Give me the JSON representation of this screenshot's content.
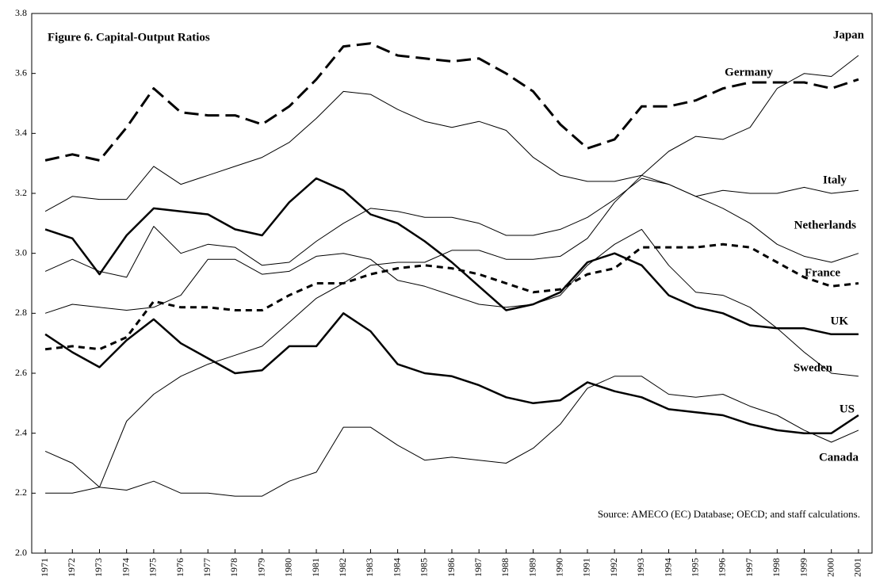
{
  "chart_data": {
    "type": "line",
    "title": "Figure 6.  Capital-Output Ratios",
    "source": "Source: AMECO (EC) Database; OECD; and staff calculations.",
    "categories": [
      "1971",
      "1972",
      "1973",
      "1974",
      "1975",
      "1976",
      "1977",
      "1978",
      "1979",
      "1980",
      "1981",
      "1982",
      "1983",
      "1984",
      "1985",
      "1986",
      "1987",
      "1988",
      "1989",
      "1990",
      "1991",
      "1992",
      "1993",
      "1994",
      "1995",
      "1996",
      "1997",
      "1998",
      "1999",
      "2000",
      "2001"
    ],
    "ylim": [
      2.0,
      3.8
    ],
    "yticks": [
      {
        "value": 2.0,
        "label": "2.0"
      },
      2.2,
      2.4,
      2.6,
      2.8,
      {
        "value": 3.0,
        "label": "3.0"
      },
      3.2,
      3.4,
      3.6,
      3.8
    ],
    "series": [
      {
        "name": "Japan",
        "color": "#000000",
        "style": "solid",
        "width": 1,
        "values": [
          2.34,
          2.3,
          2.22,
          2.44,
          2.53,
          2.59,
          2.63,
          2.66,
          2.69,
          2.77,
          2.85,
          2.9,
          2.96,
          2.97,
          2.97,
          3.01,
          3.01,
          2.98,
          2.98,
          2.99,
          3.05,
          3.17,
          3.26,
          3.34,
          3.39,
          3.38,
          3.42,
          3.55,
          3.6,
          3.59,
          3.66
        ]
      },
      {
        "name": "Germany",
        "color": "#000000",
        "style": "dashed",
        "width": 3,
        "values": [
          3.31,
          3.33,
          3.31,
          3.42,
          3.55,
          3.47,
          3.46,
          3.46,
          3.43,
          3.49,
          3.58,
          3.69,
          3.7,
          3.66,
          3.65,
          3.64,
          3.65,
          3.6,
          3.54,
          3.43,
          3.35,
          3.38,
          3.49,
          3.49,
          3.51,
          3.55,
          3.57,
          3.57,
          3.57,
          3.55,
          3.58
        ]
      },
      {
        "name": "Italy",
        "color": "#000000",
        "style": "solid",
        "width": 1,
        "values": [
          3.14,
          3.19,
          3.18,
          3.18,
          3.29,
          3.23,
          3.26,
          3.29,
          3.32,
          3.37,
          3.45,
          3.54,
          3.53,
          3.48,
          3.44,
          3.42,
          3.44,
          3.41,
          3.32,
          3.26,
          3.24,
          3.24,
          3.26,
          3.23,
          3.19,
          3.21,
          3.2,
          3.2,
          3.22,
          3.2,
          3.21
        ]
      },
      {
        "name": "Netherlands",
        "color": "#000000",
        "style": "solid",
        "width": 1,
        "values": [
          2.94,
          2.98,
          2.94,
          2.92,
          3.09,
          3.0,
          3.03,
          3.02,
          2.96,
          2.97,
          3.04,
          3.1,
          3.15,
          3.14,
          3.12,
          3.12,
          3.1,
          3.06,
          3.06,
          3.08,
          3.12,
          3.18,
          3.25,
          3.23,
          3.19,
          3.15,
          3.1,
          3.03,
          2.99,
          2.97,
          3.0
        ]
      },
      {
        "name": "France",
        "color": "#000000",
        "style": "dotted",
        "width": 3,
        "values": [
          2.68,
          2.69,
          2.68,
          2.72,
          2.84,
          2.82,
          2.82,
          2.81,
          2.81,
          2.86,
          2.9,
          2.9,
          2.93,
          2.95,
          2.96,
          2.95,
          2.93,
          2.9,
          2.87,
          2.88,
          2.93,
          2.95,
          3.02,
          3.02,
          3.02,
          3.03,
          3.02,
          2.97,
          2.92,
          2.89,
          2.9
        ]
      },
      {
        "name": "UK",
        "color": "#000000",
        "style": "solid",
        "width": 2.5,
        "values": [
          3.08,
          3.05,
          2.93,
          3.06,
          3.15,
          3.14,
          3.13,
          3.08,
          3.06,
          3.17,
          3.25,
          3.21,
          3.13,
          3.1,
          3.04,
          2.97,
          2.89,
          2.81,
          2.83,
          2.87,
          2.97,
          3.0,
          2.96,
          2.86,
          2.82,
          2.8,
          2.76,
          2.75,
          2.75,
          2.73,
          2.73
        ]
      },
      {
        "name": "Sweden",
        "color": "#000000",
        "style": "solid",
        "width": 1,
        "values": [
          2.8,
          2.83,
          2.82,
          2.81,
          2.82,
          2.86,
          2.98,
          2.98,
          2.93,
          2.94,
          2.99,
          3.0,
          2.98,
          2.91,
          2.89,
          2.86,
          2.83,
          2.82,
          2.83,
          2.86,
          2.96,
          3.03,
          3.08,
          2.96,
          2.87,
          2.86,
          2.82,
          2.75,
          2.67,
          2.6,
          2.59
        ]
      },
      {
        "name": "US",
        "color": "#000000",
        "style": "solid",
        "width": 2.5,
        "values": [
          2.73,
          2.67,
          2.62,
          2.71,
          2.78,
          2.7,
          2.65,
          2.6,
          2.61,
          2.69,
          2.69,
          2.8,
          2.74,
          2.63,
          2.6,
          2.59,
          2.56,
          2.52,
          2.5,
          2.51,
          2.57,
          2.54,
          2.52,
          2.48,
          2.47,
          2.46,
          2.43,
          2.41,
          2.4,
          2.4,
          2.46
        ]
      },
      {
        "name": "Canada",
        "color": "#000000",
        "style": "solid",
        "width": 1,
        "values": [
          2.2,
          2.2,
          2.22,
          2.21,
          2.24,
          2.2,
          2.2,
          2.19,
          2.19,
          2.24,
          2.27,
          2.42,
          2.42,
          2.36,
          2.31,
          2.32,
          2.31,
          2.3,
          2.35,
          2.43,
          2.55,
          2.59,
          2.59,
          2.53,
          2.52,
          2.53,
          2.49,
          2.46,
          2.41,
          2.37,
          2.41
        ]
      }
    ]
  }
}
